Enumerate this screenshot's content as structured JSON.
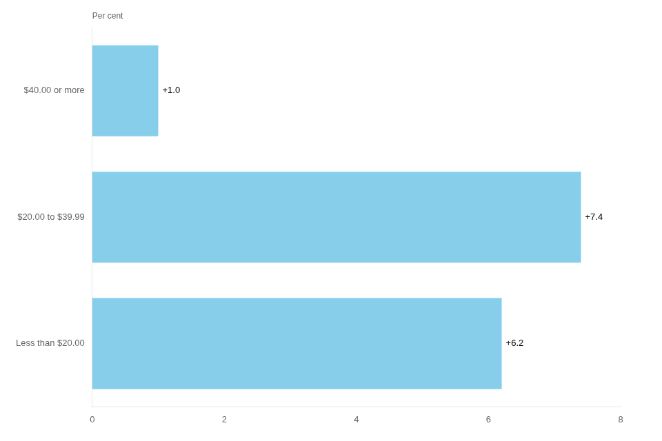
{
  "chart_data": {
    "type": "bar",
    "orientation": "horizontal",
    "categories": [
      "$40.00 or more",
      "$20.00 to $39.99",
      "Less than $20.00"
    ],
    "values": [
      1.0,
      7.4,
      6.2
    ],
    "value_labels": [
      "+1.0",
      "+7.4",
      "+6.2"
    ],
    "data_labels": true,
    "color": "#87CEEB",
    "xlim": [
      0,
      8
    ],
    "xticks": [
      0,
      2,
      4,
      6,
      8
    ],
    "grid": false,
    "annotations": [
      "Per cent"
    ]
  }
}
